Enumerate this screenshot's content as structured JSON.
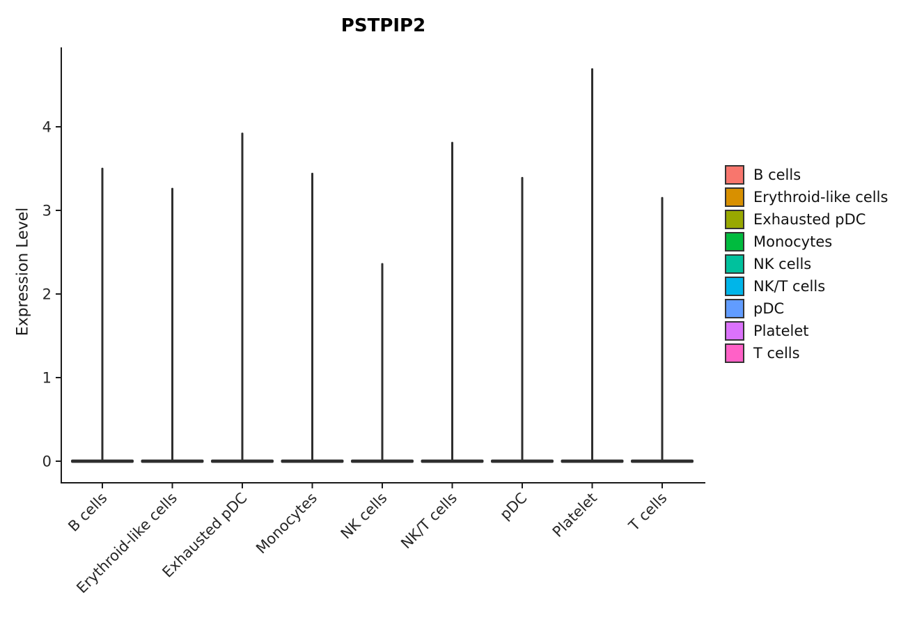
{
  "chart_data": {
    "type": "violin",
    "title": "PSTPIP2",
    "ylabel": "Expression Level",
    "xlabel": "",
    "yticks": [
      0,
      1,
      2,
      3,
      4
    ],
    "ylim": [
      0,
      4.95
    ],
    "grid": false,
    "legend_position": "right",
    "categories": [
      "B cells",
      "Erythroid-like cells",
      "Exhausted pDC",
      "Monocytes",
      "NK cells",
      "NK/T cells",
      "pDC",
      "Platelet",
      "T cells"
    ],
    "series": [
      {
        "name": "B cells",
        "color": "#F8766D",
        "max_expression": 3.51,
        "density_mode": 0
      },
      {
        "name": "Erythroid-like cells",
        "color": "#D89000",
        "max_expression": 3.27,
        "density_mode": 0
      },
      {
        "name": "Exhausted pDC",
        "color": "#98A800",
        "max_expression": 3.93,
        "density_mode": 0
      },
      {
        "name": "Monocytes",
        "color": "#00BB3E",
        "max_expression": 3.45,
        "density_mode": 0
      },
      {
        "name": "NK cells",
        "color": "#00C19D",
        "max_expression": 2.37,
        "density_mode": 0
      },
      {
        "name": "NK/T cells",
        "color": "#00B5E9",
        "max_expression": 3.82,
        "density_mode": 0
      },
      {
        "name": "pDC",
        "color": "#619CFF",
        "max_expression": 3.4,
        "density_mode": 0
      },
      {
        "name": "Platelet",
        "color": "#DB72FB",
        "max_expression": 4.7,
        "density_mode": 0
      },
      {
        "name": "T cells",
        "color": "#FF61C7",
        "max_expression": 3.16,
        "density_mode": 0
      }
    ]
  },
  "style_colors": {
    "axis": "#1a1a1a",
    "violin": "#2e2e2e",
    "tick_text": "#262626"
  }
}
